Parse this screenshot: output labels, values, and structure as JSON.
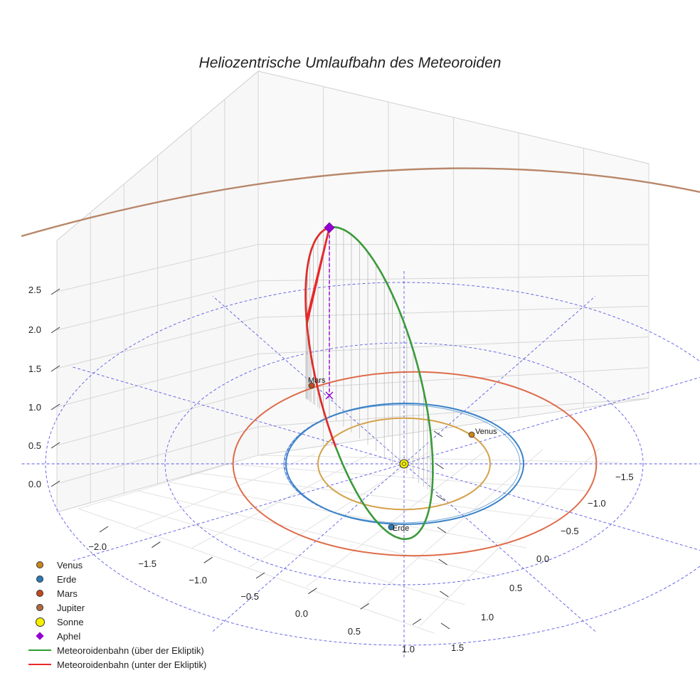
{
  "chart_data": {
    "type": "scatter3d",
    "title": "Heliozentrische Umlaufbahn des Meteoroiden",
    "z_ticks": [
      "0.0",
      "0.5",
      "1.0",
      "1.5",
      "2.0",
      "2.5"
    ],
    "x_ticks": [
      "−2.0",
      "−1.5",
      "−1.0",
      "−0.5",
      "0.0",
      "0.5",
      "1.0"
    ],
    "y_ticks": [
      "−1.5",
      "−1.0",
      "−0.5",
      "0.0",
      "0.5",
      "1.0",
      "1.5"
    ],
    "planets": [
      {
        "name": "Venus",
        "radius_au": 0.72,
        "color": "#d4a24c"
      },
      {
        "name": "Erde",
        "radius_au": 1.0,
        "color": "#3b83c7"
      },
      {
        "name": "Mars",
        "radius_au": 1.52,
        "color": "#de6b4a"
      },
      {
        "name": "Jupiter",
        "radius_au": 5.2,
        "color": "#b8876a"
      }
    ],
    "point_labels": {
      "venus": "Venus",
      "erde": "Erde",
      "mars": "Mars"
    },
    "aphel_height_au": 2.8,
    "legend": [
      {
        "label": "Venus",
        "color": "#c8861b",
        "kind": "dot"
      },
      {
        "label": "Erde",
        "color": "#2b79b8",
        "kind": "dot"
      },
      {
        "label": "Mars",
        "color": "#c24a1c",
        "kind": "dot"
      },
      {
        "label": "Jupiter",
        "color": "#b06a3d",
        "kind": "dot"
      },
      {
        "label": "Sonne",
        "color": "#f5f000",
        "kind": "bigdot"
      },
      {
        "label": "Aphel",
        "color": "#9400d3",
        "kind": "diamond"
      },
      {
        "label": "Meteoroidenbahn (über der Ekliptik)",
        "color": "#2ca02c",
        "kind": "line"
      },
      {
        "label": "Meteoroidenbahn (unter der Ekliptik)",
        "color": "#e8282a",
        "kind": "line"
      }
    ]
  }
}
